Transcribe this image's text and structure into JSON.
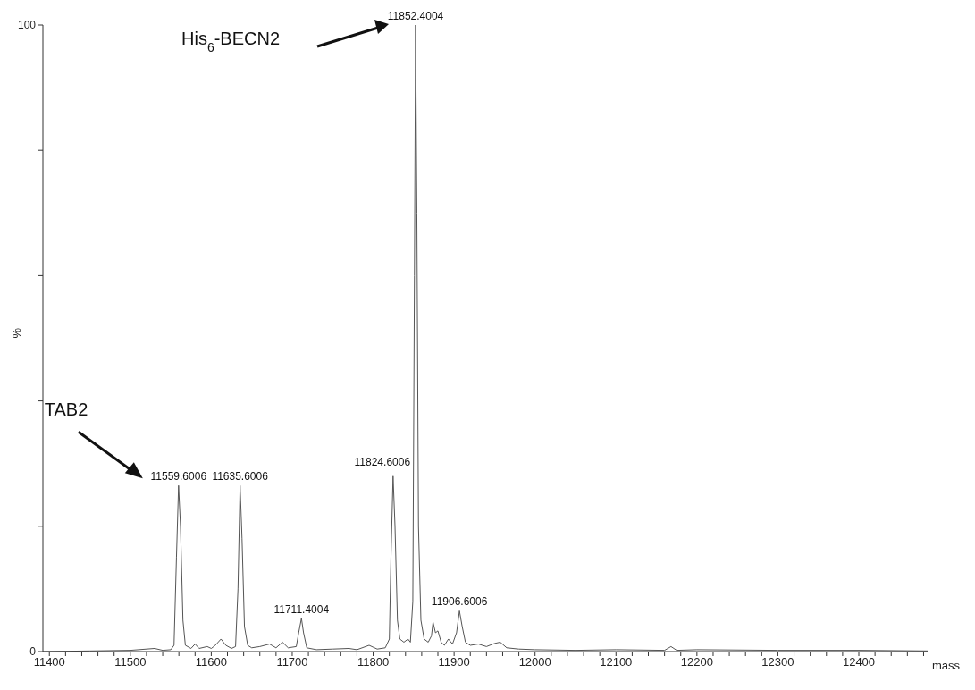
{
  "chart_data": {
    "type": "line",
    "xlabel": "mass",
    "ylabel": "%",
    "xlim": [
      11392,
      12485
    ],
    "ylim": [
      0,
      100
    ],
    "xticks": [
      11400,
      {
        "value": 11420,
        "label": null
      },
      {
        "value": 11440,
        "label": null
      },
      {
        "value": 11460,
        "label": null
      },
      {
        "value": 11480,
        "label": null
      },
      11500,
      {
        "value": 11520,
        "label": null
      },
      {
        "value": 11540,
        "label": null
      },
      {
        "value": 11560,
        "label": null
      },
      {
        "value": 11580,
        "label": null
      },
      11600,
      {
        "value": 11620,
        "label": null
      },
      {
        "value": 11640,
        "label": null
      },
      {
        "value": 11660,
        "label": null
      },
      {
        "value": 11680,
        "label": null
      },
      11700,
      {
        "value": 11720,
        "label": null
      },
      {
        "value": 11740,
        "label": null
      },
      {
        "value": 11760,
        "label": null
      },
      {
        "value": 11780,
        "label": null
      },
      11800,
      {
        "value": 11820,
        "label": null
      },
      {
        "value": 11840,
        "label": null
      },
      {
        "value": 11860,
        "label": null
      },
      {
        "value": 11880,
        "label": null
      },
      11900,
      {
        "value": 11920,
        "label": null
      },
      {
        "value": 11940,
        "label": null
      },
      {
        "value": 11960,
        "label": null
      },
      {
        "value": 11980,
        "label": null
      },
      12000,
      {
        "value": 12020,
        "label": null
      },
      {
        "value": 12040,
        "label": null
      },
      {
        "value": 12060,
        "label": null
      },
      {
        "value": 12080,
        "label": null
      },
      12100,
      {
        "value": 12120,
        "label": null
      },
      {
        "value": 12140,
        "label": null
      },
      {
        "value": 12160,
        "label": null
      },
      {
        "value": 12180,
        "label": null
      },
      12200,
      {
        "value": 12220,
        "label": null
      },
      {
        "value": 12240,
        "label": null
      },
      {
        "value": 12260,
        "label": null
      },
      {
        "value": 12280,
        "label": null
      },
      12300,
      {
        "value": 12320,
        "label": null
      },
      {
        "value": 12340,
        "label": null
      },
      {
        "value": 12360,
        "label": null
      },
      {
        "value": 12380,
        "label": null
      },
      12400,
      {
        "value": 12420,
        "label": null
      },
      {
        "value": 12440,
        "label": null
      },
      {
        "value": 12460,
        "label": null
      },
      {
        "value": 12480,
        "label": null
      }
    ],
    "yticks": [
      0,
      {
        "value": 20,
        "label": null
      },
      {
        "value": 40,
        "label": null
      },
      {
        "value": 60,
        "label": null
      },
      {
        "value": 80,
        "label": null
      },
      100
    ],
    "grid": false,
    "legend": false,
    "marker": "none",
    "line_style": "solid",
    "series": [
      {
        "color": "#555555",
        "x": [
          11392,
          11450,
          11500,
          11530,
          11540,
          11550,
          11554,
          11557,
          11559.6,
          11562,
          11565,
          11568,
          11575,
          11580,
          11585,
          11595,
          11600,
          11605,
          11612,
          11618,
          11625,
          11630,
          11633,
          11635.6,
          11638,
          11641,
          11645,
          11650,
          11660,
          11672,
          11680,
          11688,
          11695,
          11705,
          11708,
          11711.4,
          11714,
          11718,
          11730,
          11750,
          11770,
          11780,
          11795,
          11805,
          11815,
          11820,
          11822,
          11824.6,
          11827,
          11830,
          11833,
          11838,
          11843,
          11846,
          11849,
          11851,
          11852.4,
          11854,
          11856,
          11859,
          11863,
          11868,
          11872,
          11874,
          11877,
          11880,
          11884,
          11888,
          11893,
          11898,
          11903,
          11906.6,
          11910,
          11914,
          11920,
          11930,
          11940,
          11950,
          11957,
          11965,
          11980,
          12000,
          12050,
          12100,
          12160,
          12168,
          12175,
          12200,
          12300,
          12400,
          12485
        ],
        "values": [
          0,
          0.1,
          0.2,
          0.5,
          0.2,
          0.3,
          1,
          15,
          26.5,
          20,
          5,
          1,
          0.5,
          1.2,
          0.5,
          0.8,
          0.5,
          1,
          2,
          1,
          0.5,
          0.8,
          10,
          26.5,
          18,
          4,
          1,
          0.6,
          0.8,
          1.2,
          0.6,
          1.5,
          0.6,
          0.8,
          3,
          5.3,
          3,
          0.6,
          0.3,
          0.4,
          0.5,
          0.3,
          1,
          0.4,
          0.6,
          2,
          15,
          28,
          20,
          5,
          2,
          1.5,
          2,
          1.5,
          8,
          60,
          100,
          70,
          20,
          5,
          2,
          1.5,
          2.5,
          4.7,
          3,
          3.3,
          1.5,
          1,
          2,
          1.2,
          3,
          6.5,
          4,
          1.5,
          1,
          1.2,
          0.8,
          1.3,
          1.5,
          0.6,
          0.4,
          0.3,
          0.2,
          0.3,
          0.2,
          0.8,
          0.2,
          0.3,
          0.2,
          0.2,
          0.1
        ]
      }
    ],
    "annotations": [
      "TAB2",
      "His$_{6}$-BECN2",
      {
        "text": "11559.6006",
        "x": 11559.6,
        "y": 26.5
      },
      {
        "text": "11635.6006",
        "x": 11635.6,
        "y": 26.5
      },
      {
        "text": "11711.4004",
        "x": 11711.4,
        "y": 5.3
      },
      {
        "text": "11824.6006",
        "x": 11824.6,
        "y": 28
      },
      {
        "text": "11852.4004",
        "x": 11852.4,
        "y": 100
      },
      {
        "text": "11906.6006",
        "x": 11906.6,
        "y": 6.5
      }
    ]
  }
}
